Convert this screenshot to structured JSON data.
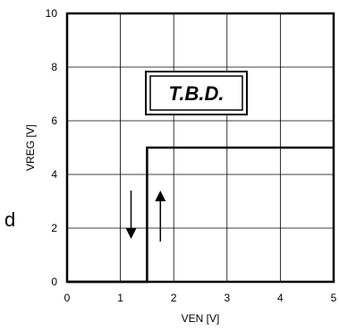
{
  "chart_data": {
    "type": "line",
    "title": "",
    "xlabel": "VEN [V]",
    "ylabel": "VREG [V]",
    "xlim": [
      0,
      5
    ],
    "ylim": [
      0,
      10
    ],
    "x_ticks": [
      "0",
      "1",
      "2",
      "3",
      "4",
      "5"
    ],
    "y_ticks": [
      "0",
      "2",
      "4",
      "6",
      "8",
      "10"
    ],
    "grid": true,
    "series": [
      {
        "x": [
          0,
          1.5,
          1.5,
          5
        ],
        "y": [
          0,
          0,
          5,
          5
        ],
        "color": "#000000"
      }
    ],
    "arrows": [
      {
        "direction": "down",
        "x": 1.2,
        "y_from": 3.4,
        "y_to": 1.6
      },
      {
        "direction": "up",
        "x": 1.75,
        "y_from": 1.5,
        "y_to": 3.4
      }
    ],
    "annotation": "T.B.D.",
    "side_label": "d"
  }
}
